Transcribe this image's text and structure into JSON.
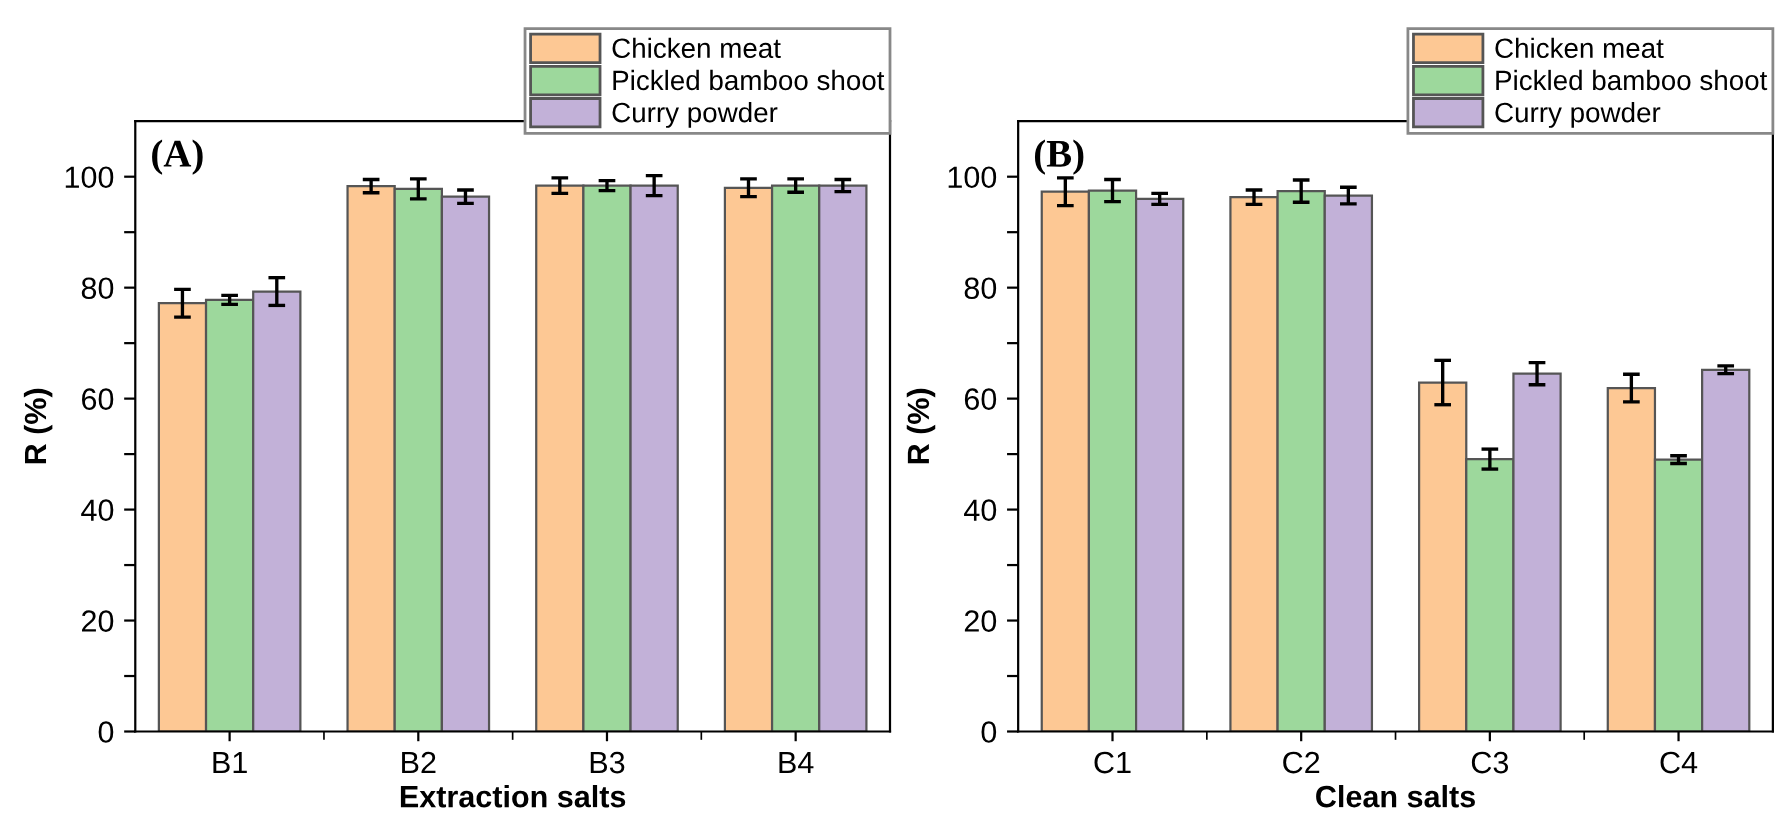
{
  "chart_data": [
    {
      "type": "bar",
      "annotations": [
        "(A)"
      ],
      "xlabel": "Extraction salts",
      "ylabel": "R (%)",
      "categories": [
        "B1",
        "B2",
        "B3",
        "B4"
      ],
      "series": [
        {
          "name": "Chicken meat",
          "color": "#fdc894",
          "values": [
            77.2,
            98.3,
            98.4,
            98.0
          ],
          "errors": [
            2.5,
            1.2,
            1.4,
            1.6
          ]
        },
        {
          "name": "Pickled bamboo shoot",
          "color": "#9dd89c",
          "values": [
            77.8,
            97.8,
            98.4,
            98.4
          ],
          "errors": [
            0.8,
            1.8,
            0.9,
            1.2
          ]
        },
        {
          "name": "Curry powder",
          "color": "#c2b1d8",
          "values": [
            79.3,
            96.4,
            98.4,
            98.4
          ],
          "errors": [
            2.5,
            1.2,
            1.8,
            1.1
          ]
        }
      ],
      "ylim": [
        0,
        110
      ],
      "yticks": [
        0,
        {
          "value": 10,
          "label": null
        },
        20,
        {
          "value": 30,
          "label": null
        },
        40,
        {
          "value": 50,
          "label": null
        },
        60,
        {
          "value": 70,
          "label": null
        },
        80,
        {
          "value": 90,
          "label": null
        },
        100
      ],
      "legend": "top right",
      "grid": false
    },
    {
      "type": "bar",
      "annotations": [
        "(B)"
      ],
      "xlabel": "Clean salts",
      "ylabel": "R (%)",
      "categories": [
        "C1",
        "C2",
        "C3",
        "C4"
      ],
      "series": [
        {
          "name": "Chicken meat",
          "color": "#fdc894",
          "values": [
            97.3,
            96.3,
            62.9,
            61.9
          ],
          "errors": [
            2.5,
            1.3,
            4,
            2.5
          ]
        },
        {
          "name": "Pickled bamboo shoot",
          "color": "#9dd89c",
          "values": [
            97.5,
            97.4,
            49.1,
            49.0
          ],
          "errors": [
            2,
            2,
            1.8,
            0.7
          ]
        },
        {
          "name": "Curry powder",
          "color": "#c2b1d8",
          "values": [
            96.0,
            96.6,
            64.5,
            65.2
          ],
          "errors": [
            1.0,
            1.5,
            2,
            0.7
          ]
        }
      ],
      "ylim": [
        0,
        110
      ],
      "yticks": [
        0,
        {
          "value": 10,
          "label": null
        },
        20,
        {
          "value": 30,
          "label": null
        },
        40,
        {
          "value": 50,
          "label": null
        },
        60,
        {
          "value": 70,
          "label": null
        },
        80,
        {
          "value": 90,
          "label": null
        },
        100
      ],
      "legend": "top right",
      "grid": false
    }
  ]
}
